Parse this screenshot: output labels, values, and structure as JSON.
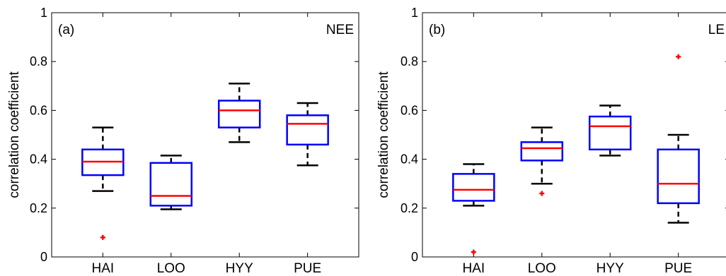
{
  "colors": {
    "box": "#0000ff",
    "median": "#ff0000",
    "whisker": "#000000",
    "outlier": "#ff0000"
  },
  "chart_data": [
    {
      "type": "box",
      "panel_label": "(a)",
      "variable_label": "NEE",
      "ylabel": "correlation coefficient",
      "ylim": [
        0,
        1
      ],
      "yticks": [
        "0",
        "0.2",
        "0.4",
        "0.6",
        "0.8",
        "1"
      ],
      "categories": [
        "HAI",
        "LOO",
        "HYY",
        "PUE"
      ],
      "boxes": [
        {
          "category": "HAI",
          "whisker_low": 0.27,
          "q1": 0.335,
          "median": 0.39,
          "q3": 0.44,
          "whisker_high": 0.53,
          "outliers": [
            0.08
          ]
        },
        {
          "category": "LOO",
          "whisker_low": 0.195,
          "q1": 0.21,
          "median": 0.25,
          "q3": 0.385,
          "whisker_high": 0.415,
          "outliers": []
        },
        {
          "category": "HYY",
          "whisker_low": 0.47,
          "q1": 0.53,
          "median": 0.6,
          "q3": 0.64,
          "whisker_high": 0.71,
          "outliers": []
        },
        {
          "category": "PUE",
          "whisker_low": 0.375,
          "q1": 0.46,
          "median": 0.545,
          "q3": 0.58,
          "whisker_high": 0.63,
          "outliers": []
        }
      ]
    },
    {
      "type": "box",
      "panel_label": "(b)",
      "variable_label": "LE",
      "ylabel": "correlation coefficient",
      "ylim": [
        0,
        1
      ],
      "yticks": [
        "0",
        "0.2",
        "0.4",
        "0.6",
        "0.8",
        "1"
      ],
      "categories": [
        "HAI",
        "LOO",
        "HYY",
        "PUE"
      ],
      "boxes": [
        {
          "category": "HAI",
          "whisker_low": 0.21,
          "q1": 0.23,
          "median": 0.275,
          "q3": 0.34,
          "whisker_high": 0.38,
          "outliers": [
            0.02
          ]
        },
        {
          "category": "LOO",
          "whisker_low": 0.3,
          "q1": 0.395,
          "median": 0.445,
          "q3": 0.47,
          "whisker_high": 0.53,
          "outliers": [
            0.26
          ]
        },
        {
          "category": "HYY",
          "whisker_low": 0.415,
          "q1": 0.44,
          "median": 0.535,
          "q3": 0.575,
          "whisker_high": 0.62,
          "outliers": []
        },
        {
          "category": "PUE",
          "whisker_low": 0.14,
          "q1": 0.22,
          "median": 0.3,
          "q3": 0.44,
          "whisker_high": 0.5,
          "outliers": [
            0.82
          ]
        }
      ]
    }
  ]
}
